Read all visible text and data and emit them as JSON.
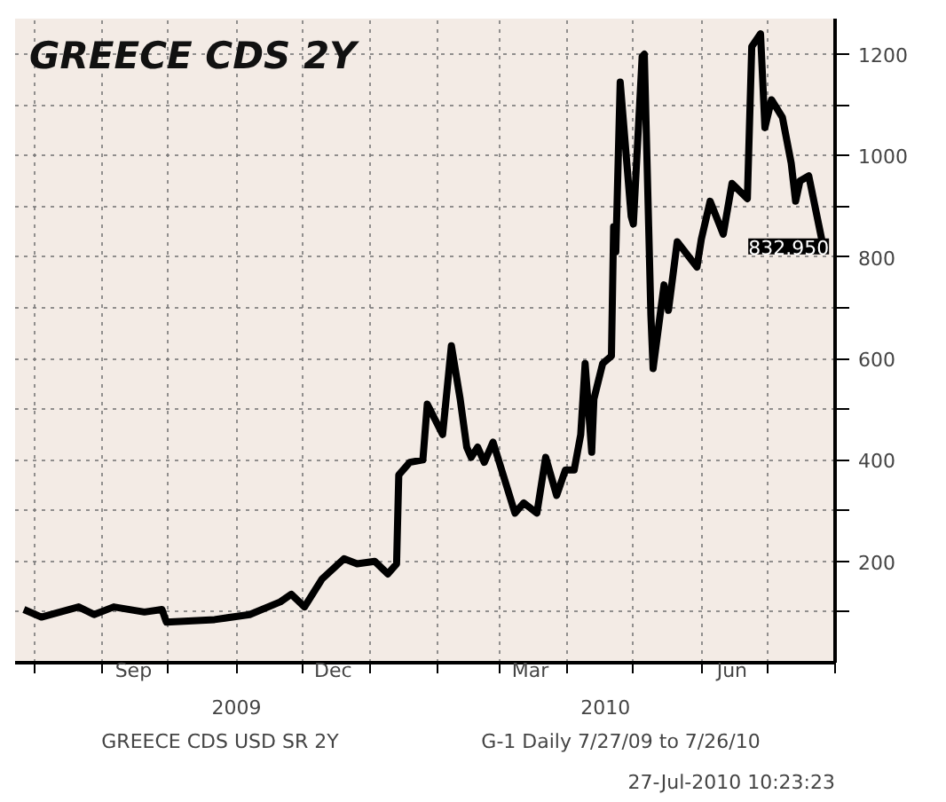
{
  "chart_data": {
    "type": "line",
    "title": "GREECE CDS 2Y",
    "x": [
      "2009-07-27",
      "2009-08-04",
      "2009-08-21",
      "2009-08-28",
      "2009-09-06",
      "2009-09-20",
      "2009-09-28",
      "2009-09-30",
      "2009-10-22",
      "2009-11-07",
      "2009-11-21",
      "2009-11-26",
      "2009-12-02",
      "2009-12-10",
      "2009-12-20",
      "2009-12-26",
      "2010-01-03",
      "2010-01-09",
      "2010-01-13",
      "2010-01-14",
      "2010-01-19",
      "2010-01-25",
      "2010-01-27",
      "2010-02-03",
      "2010-02-07",
      "2010-02-11",
      "2010-02-14",
      "2010-02-16",
      "2010-02-19",
      "2010-02-22",
      "2010-02-26",
      "2010-03-08",
      "2010-03-12",
      "2010-03-18",
      "2010-03-22",
      "2010-03-27",
      "2010-03-31",
      "2010-04-04",
      "2010-04-07",
      "2010-04-09",
      "2010-04-12",
      "2010-04-13",
      "2010-04-17",
      "2010-04-21",
      "2010-04-22",
      "2010-04-23",
      "2010-04-25",
      "2010-04-30",
      "2010-05-01",
      "2010-05-05",
      "2010-05-06",
      "2010-05-09",
      "2010-05-10",
      "2010-05-15",
      "2010-05-17",
      "2010-05-21",
      "2010-05-30",
      "2010-06-01",
      "2010-06-05",
      "2010-06-11",
      "2010-06-15",
      "2010-06-22",
      "2010-06-24",
      "2010-06-28",
      "2010-06-30",
      "2010-07-03",
      "2010-07-08",
      "2010-07-12",
      "2010-07-14",
      "2010-07-16",
      "2010-07-20",
      "2010-07-26"
    ],
    "series": [
      {
        "color": "#000000",
        "values": [
          105,
          90,
          110,
          95,
          110,
          100,
          105,
          80,
          85,
          95,
          120,
          135,
          110,
          165,
          205,
          195,
          200,
          175,
          195,
          370,
          395,
          400,
          510,
          450,
          625,
          520,
          425,
          405,
          425,
          395,
          435,
          295,
          315,
          295,
          405,
          330,
          380,
          380,
          450,
          590,
          415,
          520,
          590,
          605,
          860,
          810,
          1145,
          880,
          865,
          1195,
          1200,
          685,
          580,
          745,
          695,
          830,
          780,
          835,
          910,
          845,
          945,
          915,
          1215,
          1240,
          1055,
          1110,
          1075,
          985,
          910,
          950,
          960,
          832.95
        ]
      }
    ],
    "xlim": [
      "2009-07-23",
      "2010-08-01"
    ],
    "ylim": [
      0,
      1270
    ],
    "yticks": [
      {
        "value": 100,
        "label": null
      },
      200,
      {
        "value": 300,
        "label": null
      },
      400,
      {
        "value": 500,
        "label": null
      },
      600,
      {
        "value": 700,
        "label": null
      },
      {
        "value": 800,
        "label": "800"
      },
      {
        "value": 900,
        "label": null
      },
      1000,
      {
        "value": 1100,
        "label": null
      },
      1200
    ],
    "xticks": [
      {
        "value": "2009-08-01",
        "label": null
      },
      {
        "value": "2009-09-01",
        "label": null
      },
      {
        "value": "2009-09-15",
        "label": "Sep"
      },
      {
        "value": "2009-10-01",
        "label": null
      },
      {
        "value": "2009-11-01",
        "label": null
      },
      {
        "value": "2009-12-01",
        "label": null
      },
      {
        "value": "2009-12-15",
        "label": "Dec"
      },
      {
        "value": "2010-01-01",
        "label": null
      },
      {
        "value": "2010-02-01",
        "label": null
      },
      {
        "value": "2010-03-01",
        "label": null
      },
      {
        "value": "2010-03-15",
        "label": "Mar"
      },
      {
        "value": "2010-04-01",
        "label": null
      },
      {
        "value": "2010-05-01",
        "label": null
      },
      {
        "value": "2010-06-01",
        "label": null
      },
      {
        "value": "2010-06-15",
        "label": "Jun"
      },
      {
        "value": "2010-07-01",
        "label": null
      },
      {
        "value": "2010-08-01",
        "label": null
      }
    ],
    "grid": true,
    "line_style": "solid",
    "marker": "none",
    "annotations": [
      {
        "text": "832.950",
        "x": "2010-07-26",
        "y": 832.95
      },
      "2009",
      "2010",
      "GREECE CDS USD SR 2Y",
      "G-1   Daily  7/27/09 to 7/26/10",
      "27-Jul-2010 10:23:23"
    ]
  }
}
